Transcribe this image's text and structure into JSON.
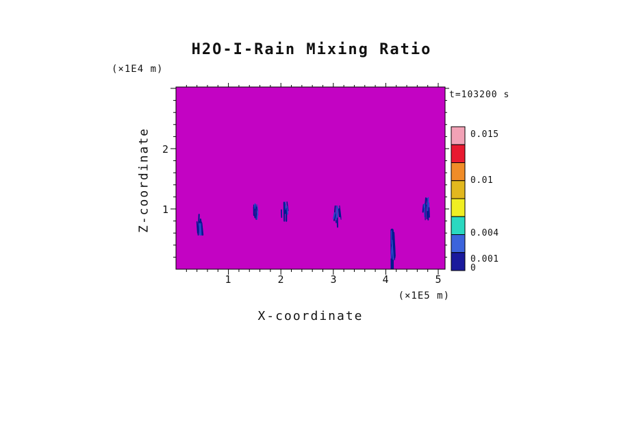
{
  "chart_data": {
    "type": "heatmap",
    "title": "H2O-I-Rain Mixing Ratio",
    "time_annotation": "t=103200 s",
    "xlabel": "X-coordinate",
    "ylabel": "Z-coordinate",
    "x_unit": "(×1E5 m)",
    "y_unit": "(×1E4 m)",
    "x_ticks": [
      "1",
      "2",
      "3",
      "4",
      "5"
    ],
    "y_ticks": [
      "1",
      "2"
    ],
    "xlim": [
      0,
      5.13
    ],
    "ylim": [
      0,
      3.02
    ],
    "grid": false,
    "background_color": "#c303c3",
    "feature_colors": {
      "core": "#001a8f",
      "fringe": "#2a46c8"
    },
    "features": [
      {
        "x": 0.44,
        "z_top": 0.93,
        "z_bottom": 0.57,
        "x_width": 0.1
      },
      {
        "x": 1.52,
        "z_top": 1.09,
        "z_bottom": 0.83,
        "x_width": 0.08
      },
      {
        "x": 2.06,
        "z_top": 1.13,
        "z_bottom": 0.8,
        "x_width": 0.14
      },
      {
        "x": 3.07,
        "z_top": 1.07,
        "z_bottom": 0.7,
        "x_width": 0.12
      },
      {
        "x": 4.12,
        "z_top": 0.67,
        "z_bottom": 0.0,
        "x_width": 0.09
      },
      {
        "x": 4.79,
        "z_top": 1.19,
        "z_bottom": 0.82,
        "x_width": 0.14
      }
    ],
    "colorbar": {
      "orientation": "vertical",
      "labels": [
        "0.015",
        "0.01",
        "0.004",
        "0.001",
        "0"
      ],
      "levels_labeled": [
        0.015,
        0.01,
        0.004,
        0.001,
        0
      ],
      "colors": [
        "#f2a2b6",
        "#e81a30",
        "#f08c28",
        "#e2b81e",
        "#f0ee22",
        "#2ad8c0",
        "#3c64dc",
        "#1a1a9c"
      ]
    }
  }
}
